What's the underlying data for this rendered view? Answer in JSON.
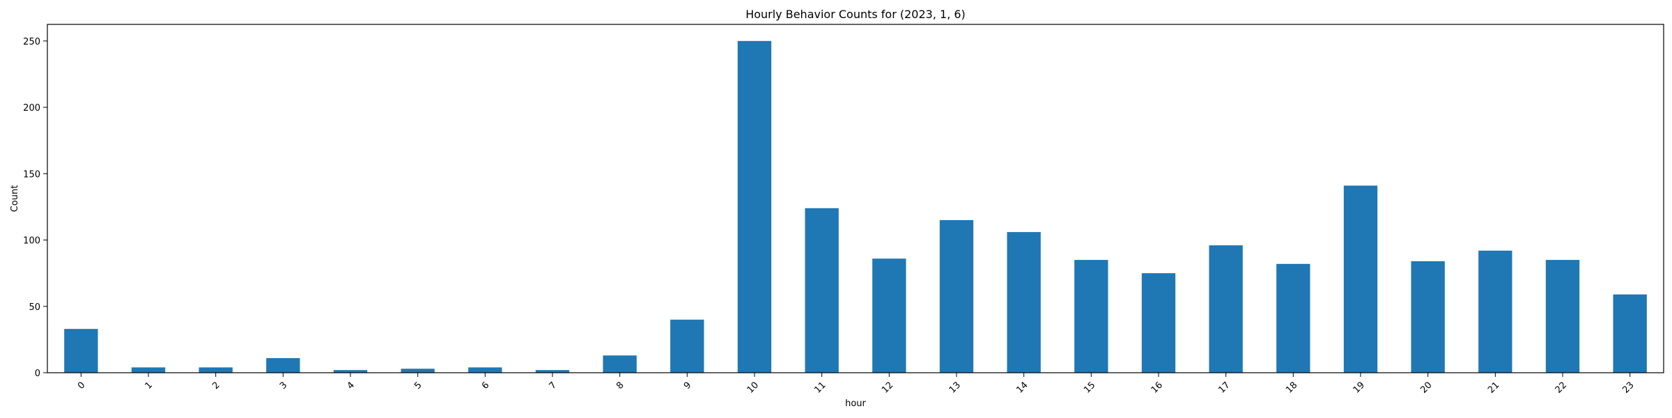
{
  "chart_data": {
    "type": "bar",
    "title": "Hourly Behavior Counts for (2023, 1, 6)",
    "xlabel": "hour",
    "ylabel": "Count",
    "categories": [
      "0",
      "1",
      "2",
      "3",
      "4",
      "5",
      "6",
      "7",
      "8",
      "9",
      "10",
      "11",
      "12",
      "13",
      "14",
      "15",
      "16",
      "17",
      "18",
      "19",
      "20",
      "21",
      "22",
      "23"
    ],
    "values": [
      33,
      4,
      4,
      11,
      2,
      3,
      4,
      2,
      13,
      40,
      250,
      124,
      86,
      115,
      106,
      85,
      75,
      96,
      82,
      141,
      84,
      92,
      85,
      59
    ],
    "ylim": [
      0,
      262.5
    ],
    "yticks": [
      "0",
      "50",
      "100",
      "150",
      "200",
      "250"
    ],
    "xtick_rotation": 45,
    "bar_color": "#1f77b4",
    "grid": false,
    "legend": "none"
  }
}
